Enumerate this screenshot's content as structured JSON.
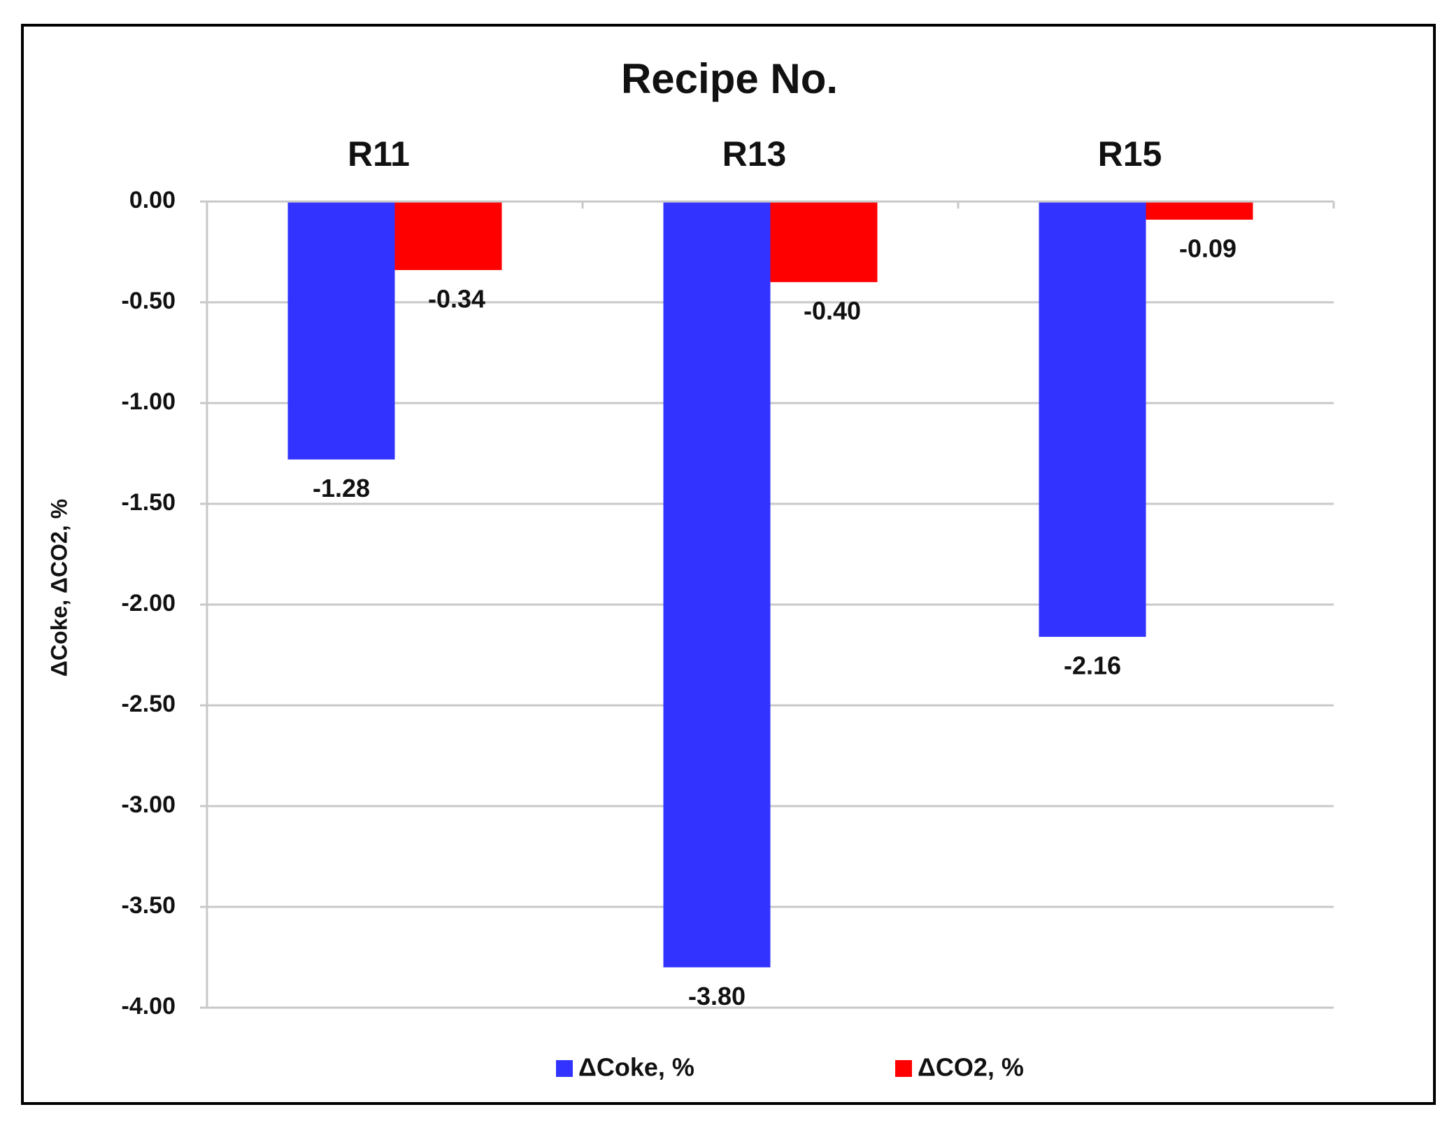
{
  "chart_data": {
    "type": "bar",
    "title": "Recipe No.",
    "y_label": "ΔCoke, ΔCO2, %",
    "categories": [
      "R11",
      "R13",
      "R15"
    ],
    "series": [
      {
        "name": "ΔCoke, %",
        "color": "#3333ff",
        "values": [
          -1.28,
          -3.8,
          -2.16
        ],
        "value_labels": [
          "-1.28",
          "-3.80",
          "-2.16"
        ]
      },
      {
        "name": "ΔCO2, %",
        "color": "#ff0000",
        "values": [
          -0.34,
          -0.4,
          -0.09
        ],
        "value_labels": [
          "-0.34",
          "-0.40",
          "-0.09"
        ]
      }
    ],
    "ylim": [
      -4,
      0
    ],
    "yticks": [
      {
        "value": 0,
        "label": "0.00"
      },
      {
        "value": -0.5,
        "label": "-0.50"
      },
      {
        "value": -1,
        "label": "-1.00"
      },
      {
        "value": -1.5,
        "label": "-1.50"
      },
      {
        "value": -2,
        "label": "-2.00"
      },
      {
        "value": -2.5,
        "label": "-2.50"
      },
      {
        "value": -3,
        "label": "-3.00"
      },
      {
        "value": -3.5,
        "label": "-3.50"
      },
      {
        "value": -4,
        "label": "-4.00"
      }
    ],
    "grid": true,
    "legend": "bottom"
  }
}
